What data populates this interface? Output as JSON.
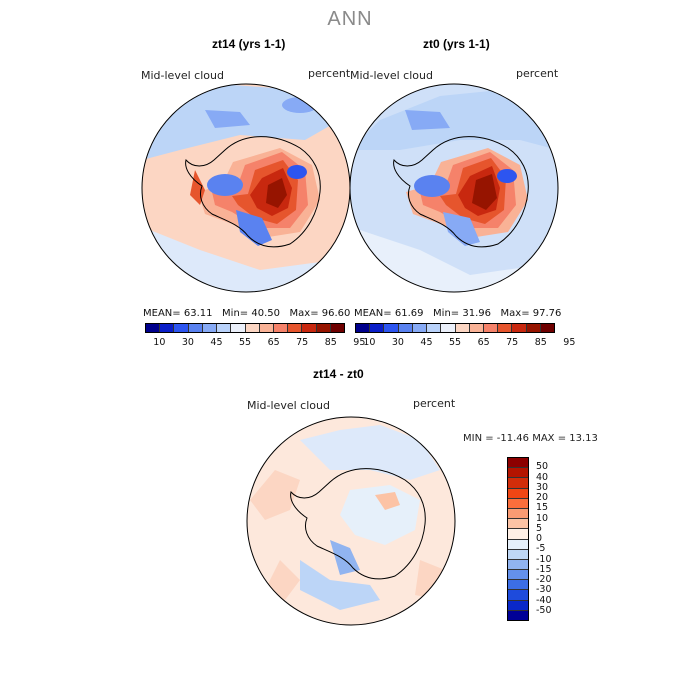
{
  "title": "ANN",
  "panels": [
    {
      "title": "zt14 (yrs 1-1)",
      "field": "Mid-level cloud",
      "units": "percent",
      "mean_label": "MEAN=",
      "mean": "63.11",
      "min_label": "Min=",
      "min": "40.50",
      "max_label": "Max=",
      "max": "96.60"
    },
    {
      "title": "zt0 (yrs 1-1)",
      "field": "Mid-level cloud",
      "units": "percent",
      "mean_label": "MEAN=",
      "mean": "61.69",
      "min_label": "Min=",
      "min": "31.96",
      "max_label": "Max=",
      "max": "97.76"
    }
  ],
  "abs_colorbar": {
    "colors": [
      "#00008c",
      "#0a1ec8",
      "#2d55f0",
      "#5a82f0",
      "#87aaf5",
      "#b9d2fa",
      "#ebf0fa",
      "#fcd6c3",
      "#f9b296",
      "#f5826a",
      "#e6552d",
      "#c8280f",
      "#961400",
      "#6e0000"
    ],
    "labels": [
      "10",
      "30",
      "45",
      "55",
      "65",
      "75",
      "85",
      "95"
    ]
  },
  "diff": {
    "title": "zt14 - zt0",
    "field": "Mid-level cloud",
    "units": "percent",
    "range_text": "MIN = -11.46  MAX =  13.13",
    "colors": [
      "#8c0000",
      "#b41400",
      "#d22d0a",
      "#f04614",
      "#fa6e3c",
      "#fa9b73",
      "#fcc3a5",
      "#fff0e6",
      "#e6f0fa",
      "#bed7f5",
      "#91b4f0",
      "#6491eb",
      "#3c6ee6",
      "#1e4bdc",
      "#0a28c8",
      "#000096"
    ],
    "labels": [
      "50",
      "40",
      "30",
      "20",
      "15",
      "10",
      "5",
      "0",
      "-5",
      "-10",
      "-15",
      "-20",
      "-30",
      "-40",
      "-50"
    ]
  }
}
